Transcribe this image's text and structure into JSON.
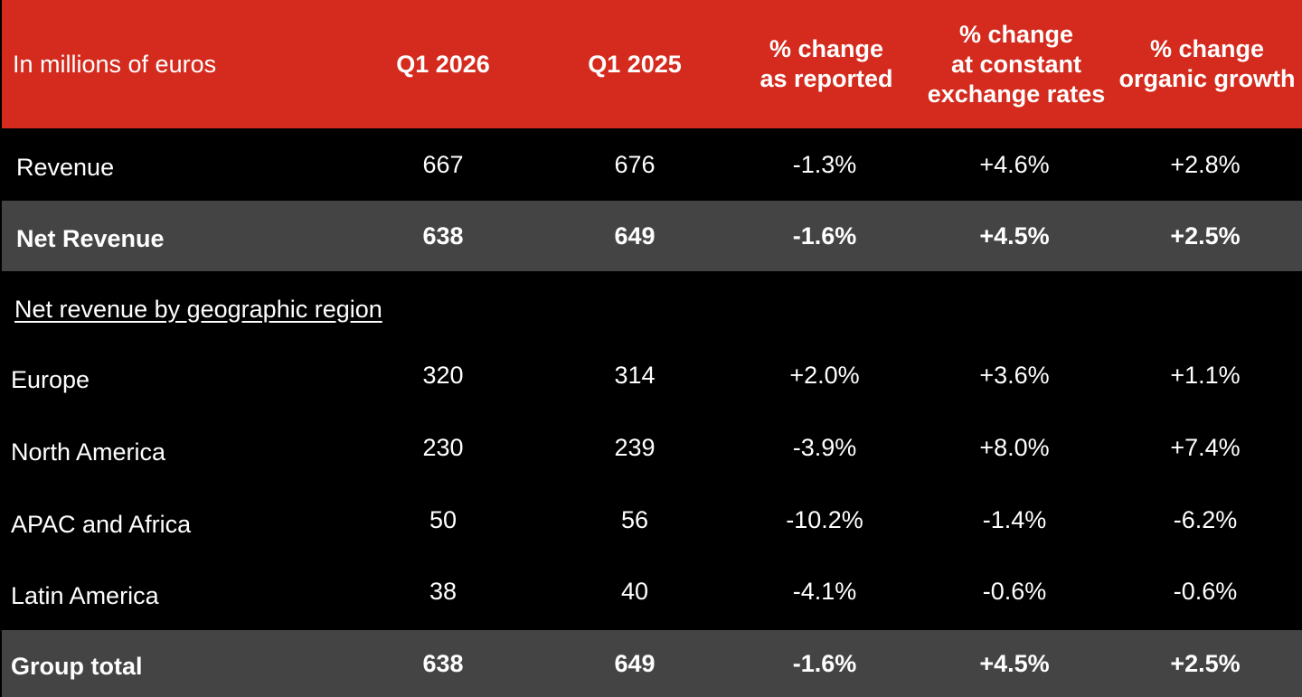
{
  "header": {
    "label": "In millions of euros",
    "col1": "Q1 2026",
    "col2": "Q1 2025",
    "col3": [
      "% change",
      "as reported"
    ],
    "col4": [
      "% change",
      "at constant",
      "exchange rates"
    ],
    "col5": [
      "% change",
      "organic growth"
    ]
  },
  "rows": [
    {
      "label": "Revenue",
      "q1_2026": "667",
      "q1_2025": "676",
      "reported": "-1.3%",
      "constant": "+4.6%",
      "organic": "+2.8%"
    },
    {
      "label": "Net Revenue",
      "q1_2026": "638",
      "q1_2025": "649",
      "reported": "-1.6%",
      "constant": "+4.5%",
      "organic": "+2.5%"
    }
  ],
  "section_label": "Net revenue by geographic region",
  "regions": [
    {
      "label": "Europe",
      "q1_2026": "320",
      "q1_2025": "314",
      "reported": "+2.0%",
      "constant": "+3.6%",
      "organic": "+1.1%"
    },
    {
      "label": "North America",
      "q1_2026": "230",
      "q1_2025": "239",
      "reported": "-3.9%",
      "constant": "+8.0%",
      "organic": "+7.4%"
    },
    {
      "label": "APAC and Africa",
      "q1_2026": "50",
      "q1_2025": "56",
      "reported": "-10.2%",
      "constant": "-1.4%",
      "organic": "-6.2%"
    },
    {
      "label": "Latin America",
      "q1_2026": "38",
      "q1_2025": "40",
      "reported": "-4.1%",
      "constant": "-0.6%",
      "organic": "-0.6%"
    }
  ],
  "total": {
    "label": "Group total",
    "q1_2026": "638",
    "q1_2025": "649",
    "reported": "-1.6%",
    "constant": "+4.5%",
    "organic": "+2.5%"
  },
  "colors": {
    "header_bg": "#d42b1e",
    "shaded_row_bg": "#444444",
    "body_bg": "#000000",
    "text": "#ffffff"
  }
}
